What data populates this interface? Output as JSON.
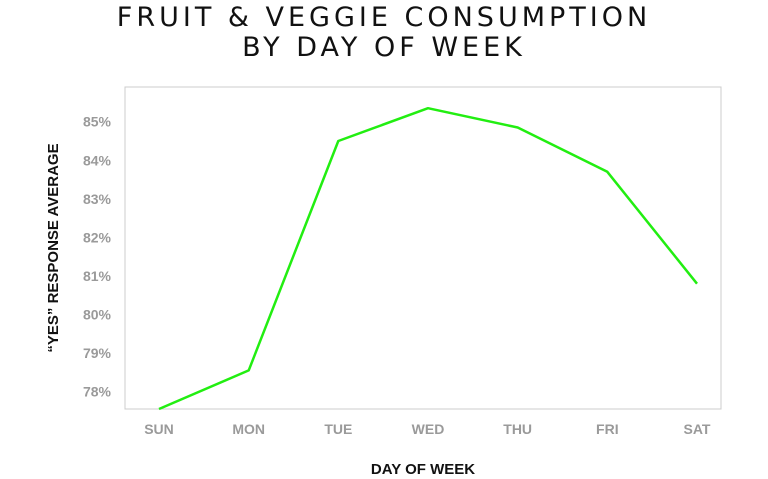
{
  "chart_data": {
    "type": "line",
    "title_lines": [
      "FRUIT & VEGGIE CONSUMPTION",
      "BY DAY OF WEEK"
    ],
    "xlabel": "DAY OF WEEK",
    "ylabel": "“YES” RESPONSE AVERAGE",
    "categories": [
      "SUN",
      "MON",
      "TUE",
      "WED",
      "THU",
      "FRI",
      "SAT"
    ],
    "y_ticks": [
      78,
      79,
      80,
      81,
      82,
      83,
      84,
      85
    ],
    "y_tick_labels": [
      "78%",
      "79%",
      "80%",
      "81%",
      "82%",
      "83%",
      "84%",
      "85%"
    ],
    "ylim": [
      77.55,
      85.9
    ],
    "grid": false,
    "legend": "none",
    "series": [
      {
        "color": "#22ee11",
        "values": [
          77.55,
          78.55,
          84.5,
          85.35,
          84.85,
          83.7,
          80.8
        ]
      }
    ]
  }
}
